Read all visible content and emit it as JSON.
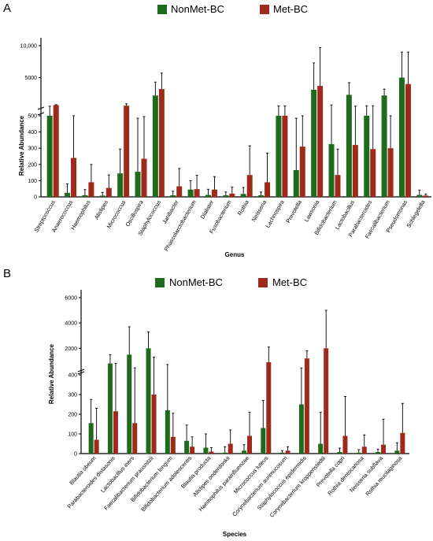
{
  "chart_data": [
    {
      "type": "bar",
      "panel": "A",
      "xlabel": "Genus",
      "ylabel": "Relative Abundance",
      "y_axis": "broken (linear 0–500 below break, compressed 500–10,000 above)",
      "yticks": [
        "0",
        "100",
        "200",
        "300",
        "400",
        "500",
        "5000",
        "10,000"
      ],
      "legend_position": "top",
      "categories": [
        "Streptococcus",
        "Anaerococcus",
        "Haemophilus",
        "Alistipes",
        "Micrococcus",
        "Oscillospira",
        "Staphylococcus",
        "Janibacter",
        "Phascolarctobacterium",
        "Dialister",
        "Fusobacterium",
        "Rothia",
        "Neisseria",
        "Lachnospira",
        "Prevotella",
        "Lawsonia",
        "Bifidobacterium",
        "Lactobacillus",
        "Parabacteroides",
        "Faecalibacterium",
        "Pseudomonas",
        "Schlegelella"
      ],
      "series": [
        {
          "name": "NonMet-BC",
          "color": "#1e6b1e",
          "values": [
            500,
            25,
            10,
            8,
            145,
            155,
            2200,
            10,
            45,
            12,
            10,
            18,
            10,
            500,
            165,
            3100,
            325,
            2300,
            500,
            2200,
            5000,
            12
          ],
          "error": [
            20,
            55,
            35,
            20,
            150,
            330,
            2100,
            25,
            55,
            35,
            20,
            40,
            20,
            60,
            320,
            4200,
            400,
            1900,
            80,
            1000,
            4000,
            30
          ]
        },
        {
          "name": "Met-BC",
          "color": "#9e2a1c",
          "values": [
            700,
            240,
            90,
            55,
            600,
            235,
            3200,
            65,
            48,
            45,
            20,
            135,
            90,
            500,
            310,
            3700,
            135,
            320,
            295,
            300,
            4000,
            8
          ]
        },
        {
          "name": "Met-BC-error",
          "values": [
            60,
            260,
            110,
            80,
            300,
            260,
            2500,
            110,
            85,
            80,
            40,
            180,
            180,
            60,
            190,
            6000,
            160,
            200,
            300,
            200,
            5000,
            10
          ]
        }
      ]
    },
    {
      "type": "bar",
      "panel": "B",
      "xlabel": "Species",
      "ylabel": "Relative Abundance",
      "y_axis": "broken (linear 0–400 below break, compressed 400–6000 above)",
      "yticks": [
        "0",
        "100",
        "200",
        "300",
        "400",
        "2000",
        "4000",
        "6000"
      ],
      "legend_position": "top",
      "categories": [
        "Blautia obeum",
        "Parabacteroides distasonis",
        "Lactobacillus iners",
        "Faecalibacterium prausnitzii",
        "Bifidobacterium longum",
        "Bifidobacterium adolescentis",
        "Blautia producta",
        "Alistipes onderdonkii",
        "Haemophilus parainfluenzae",
        "Micrococcus luteus",
        "Corynebacterium aurimucosum",
        "Staphylococcus epidermidis",
        "Corynebacterium kroppenstedtii",
        "Prevotella copri",
        "Rothia dentocariosa",
        "Neisseria subflava",
        "Rothia mucilaginosa"
      ],
      "series": [
        {
          "name": "NonMet-BC",
          "color": "#1e6b1e",
          "values": [
            155,
            800,
            1500,
            2000,
            220,
            65,
            30,
            5,
            15,
            130,
            5,
            250,
            50,
            8,
            5,
            8,
            15
          ],
          "error": [
            120,
            700,
            2200,
            1300,
            500,
            80,
            70,
            30,
            30,
            140,
            10,
            200,
            160,
            20,
            15,
            15,
            40
          ]
        },
        {
          "name": "Met-BC",
          "color": "#9e2a1c",
          "values": [
            70,
            215,
            155,
            300,
            85,
            35,
            10,
            50,
            90,
            900,
            15,
            1200,
            2000,
            90,
            35,
            45,
            105
          ]
        },
        {
          "name": "Met-BC-error",
          "values": [
            160,
            600,
            300,
            1000,
            120,
            50,
            20,
            70,
            120,
            1200,
            20,
            600,
            3000,
            200,
            60,
            130,
            150
          ]
        }
      ]
    }
  ],
  "panels": {
    "a": {
      "letter": "A",
      "legend": [
        "NonMet-BC",
        "Met-BC"
      ],
      "yticks": [
        "0",
        "100",
        "200",
        "300",
        "400",
        "500",
        "5000",
        "10,000"
      ],
      "ylabel": "Relative Abundance",
      "xlabel": "Genus"
    },
    "b": {
      "letter": "B",
      "legend": [
        "NonMet-BC",
        "Met-BC"
      ],
      "yticks": [
        "0",
        "100",
        "200",
        "300",
        "400",
        "2000",
        "4000",
        "6000"
      ],
      "ylabel": "Relative Abundance",
      "xlabel": "Species"
    }
  }
}
